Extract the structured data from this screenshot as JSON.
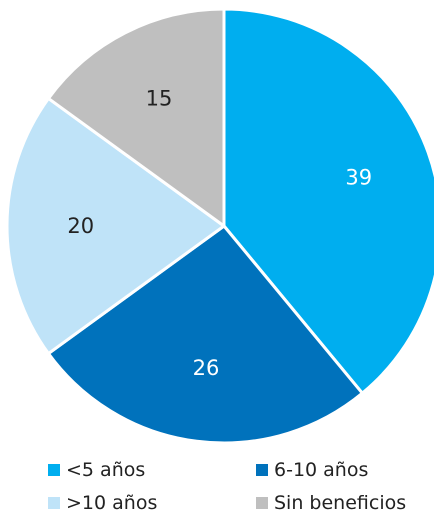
{
  "chart_data": {
    "type": "pie",
    "title": "",
    "categories": [
      "<5 años",
      "6-10 años",
      ">10 años",
      "Sin beneficios"
    ],
    "values": [
      39,
      26,
      20,
      15
    ],
    "value_labels": [
      "39",
      "26",
      "20",
      "15"
    ],
    "colors": [
      "#00aeef",
      "#0072bc",
      "#bfe3f8",
      "#bfbfbf"
    ],
    "label_colors": [
      "#ffffff",
      "#ffffff",
      "#222222",
      "#222222"
    ],
    "slice_order": [
      0,
      1,
      2,
      3
    ],
    "legend": {
      "position": "bottom",
      "items": [
        {
          "label": "<5 años",
          "color": "#00aeef"
        },
        {
          "label": "6-10 años",
          "color": "#0072bc"
        },
        {
          "label": ">10 años",
          "color": "#bfe3f8"
        },
        {
          "label": "Sin beneficios",
          "color": "#bfbfbf"
        }
      ]
    }
  }
}
